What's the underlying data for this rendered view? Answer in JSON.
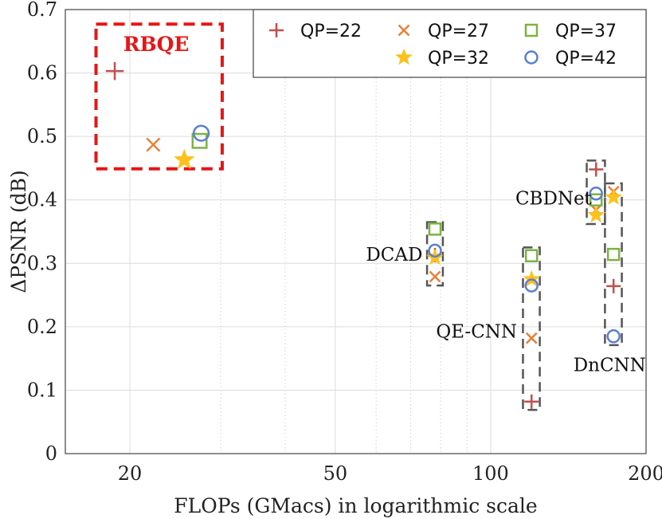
{
  "chart_data": {
    "type": "scatter",
    "title": "",
    "xlabel": "FLOPs (GMacs) in logarithmic scale",
    "ylabel": "ΔPSNR (dB)",
    "xscale": "log",
    "xlim": [
      15,
      200
    ],
    "ylim": [
      0,
      0.7
    ],
    "xticks": [
      {
        "value": 20,
        "label": "20"
      },
      {
        "value": 50,
        "label": "50"
      },
      {
        "value": 100,
        "label": "100"
      },
      {
        "value": 200,
        "label": "200"
      }
    ],
    "yticks": [
      {
        "value": 0,
        "label": "0"
      },
      {
        "value": 0.1,
        "label": "0.1"
      },
      {
        "value": 0.2,
        "label": "0.2"
      },
      {
        "value": 0.3,
        "label": "0.3"
      },
      {
        "value": 0.4,
        "label": "0.4"
      },
      {
        "value": 0.5,
        "label": "0.5"
      },
      {
        "value": 0.6,
        "label": "0.6"
      },
      {
        "value": 0.7,
        "label": "0.7"
      }
    ],
    "grid": true,
    "legend_position": "top-right",
    "series": [
      {
        "name": "QP=22",
        "marker": "plus",
        "color": "#c0504d",
        "points": [
          {
            "method": "RBQE",
            "x": 18.7,
            "y": 0.603
          },
          {
            "method": "DCAD",
            "x": 78,
            "y": 0.313
          },
          {
            "method": "QE-CNN",
            "x": 120,
            "y": 0.082
          },
          {
            "method": "CBDNet",
            "x": 160,
            "y": 0.448
          },
          {
            "method": "DnCNN",
            "x": 173,
            "y": 0.264
          }
        ]
      },
      {
        "name": "QP=27",
        "marker": "x",
        "color": "#e8823a",
        "points": [
          {
            "method": "RBQE",
            "x": 22.2,
            "y": 0.487
          },
          {
            "method": "DCAD",
            "x": 78,
            "y": 0.279
          },
          {
            "method": "QE-CNN",
            "x": 120,
            "y": 0.182
          },
          {
            "method": "CBDNet",
            "x": 160,
            "y": 0.384
          },
          {
            "method": "DnCNN",
            "x": 173,
            "y": 0.413
          }
        ]
      },
      {
        "name": "QP=32",
        "marker": "star",
        "color": "#fcc21b",
        "points": [
          {
            "method": "RBQE",
            "x": 25.5,
            "y": 0.463
          },
          {
            "method": "DCAD",
            "x": 78,
            "y": 0.309
          },
          {
            "method": "QE-CNN",
            "x": 120,
            "y": 0.275
          },
          {
            "method": "CBDNet",
            "x": 160,
            "y": 0.376
          },
          {
            "method": "DnCNN",
            "x": 173,
            "y": 0.404
          }
        ]
      },
      {
        "name": "QP=37",
        "marker": "square",
        "color": "#7cb342",
        "points": [
          {
            "method": "RBQE",
            "x": 27.3,
            "y": 0.493
          },
          {
            "method": "DCAD",
            "x": 78,
            "y": 0.354
          },
          {
            "method": "QE-CNN",
            "x": 120,
            "y": 0.312
          },
          {
            "method": "CBDNet",
            "x": 160,
            "y": 0.4
          },
          {
            "method": "DnCNN",
            "x": 173,
            "y": 0.314
          }
        ]
      },
      {
        "name": "QP=42",
        "marker": "circle",
        "color": "#5b7fcf",
        "points": [
          {
            "method": "RBQE",
            "x": 27.5,
            "y": 0.505
          },
          {
            "method": "DCAD",
            "x": 78,
            "y": 0.32
          },
          {
            "method": "QE-CNN",
            "x": 120,
            "y": 0.265
          },
          {
            "method": "CBDNet",
            "x": 160,
            "y": 0.41
          },
          {
            "method": "DnCNN",
            "x": 173,
            "y": 0.185
          }
        ]
      }
    ],
    "groups": [
      {
        "method": "RBQE",
        "label": "RBQE",
        "label_color": "#e81515",
        "box_color": "#e81515",
        "style": "red-dashed-region",
        "x_range": [
          17.2,
          30.2
        ],
        "y_range": [
          0.449,
          0.677
        ],
        "label_anchor": {
          "x": 22.5,
          "y": 0.645
        }
      },
      {
        "method": "DCAD",
        "label": "DCAD",
        "box_color": "#555555",
        "style": "gray-dashed-box",
        "x_range": [
          75.3,
          80.8
        ],
        "y_range": [
          0.265,
          0.365
        ],
        "label_anchor": {
          "x": 73.8,
          "y": 0.314
        },
        "label_align": "end"
      },
      {
        "method": "QE-CNN",
        "label": "QE-CNN",
        "box_color": "#555555",
        "style": "gray-dashed-box",
        "x_range": [
          115.5,
          124.5
        ],
        "y_range": [
          0.069,
          0.325
        ],
        "label_anchor": {
          "x": 112.5,
          "y": 0.193
        },
        "label_align": "end"
      },
      {
        "method": "CBDNet",
        "label": "CBDNet",
        "box_color": "#555555",
        "style": "gray-dashed-box",
        "x_range": [
          153.5,
          166.5
        ],
        "y_range": [
          0.362,
          0.462
        ],
        "label_anchor": {
          "x": 157.0,
          "y": 0.403
        },
        "label_align": "end"
      },
      {
        "method": "DnCNN",
        "label": "DnCNN",
        "box_color": "#555555",
        "style": "gray-dashed-box",
        "x_range": [
          166.5,
          179.5
        ],
        "y_range": [
          0.171,
          0.426
        ],
        "label_anchor": {
          "x": 170.0,
          "y": 0.14
        },
        "label_align": "middle"
      }
    ]
  }
}
